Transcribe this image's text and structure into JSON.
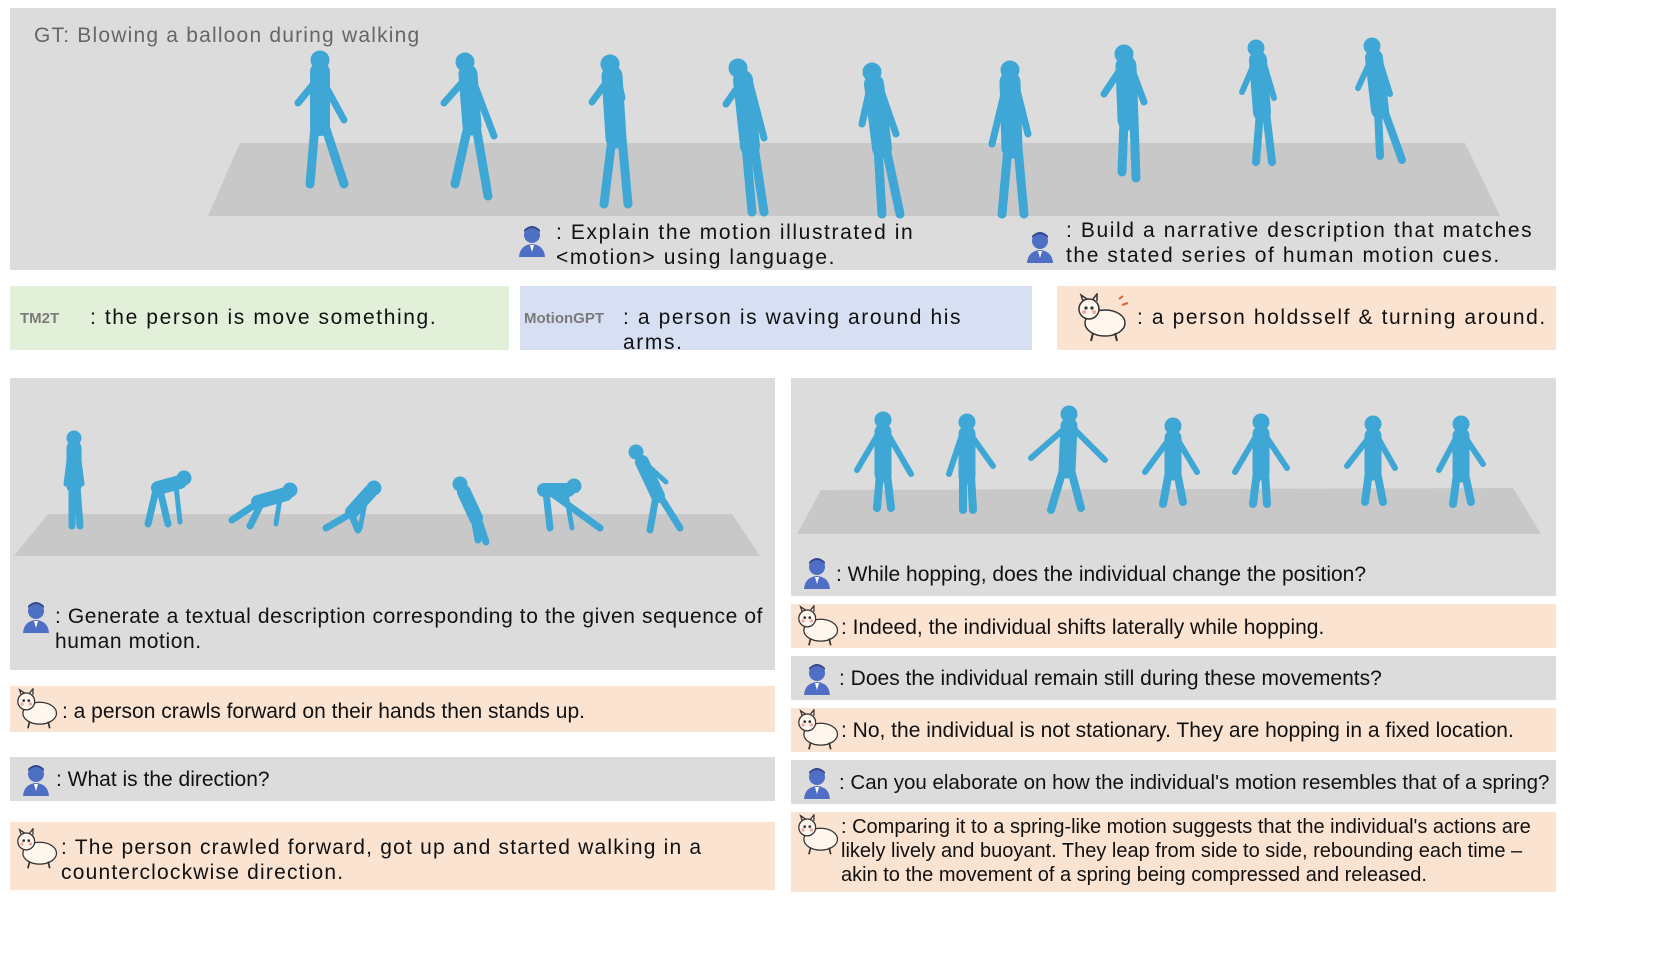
{
  "colors": {
    "figure": "#3fa7d6",
    "panel_gray": "#dcdcdc",
    "answer_peach": "#fbe3d2",
    "tm2t_green": "#e3f0d9",
    "motiongpt_blue": "#d7e0f3",
    "user_icon": "#4f6fc4"
  },
  "icons": {
    "user": "user-icon",
    "model": "llama-mascot-icon"
  },
  "top": {
    "gt_label": "GT: Blowing a balloon during walking",
    "prompt1": ": Explain the motion illustrated in <motion> using language.",
    "prompt2": ": Build a narrative description that matches the stated series of human motion cues.",
    "tm2t": {
      "label": "TM2T",
      "text": ": the person is move something."
    },
    "motiongpt": {
      "label": "MotionGPT",
      "text": ": a person is waving around his arms."
    },
    "ours": {
      "text": ": a person holdsself & turning around."
    }
  },
  "left": {
    "q1": ": Generate a textual description corresponding to the given sequence of human motion.",
    "a1": ": a person crawls forward on their hands then stands up.",
    "q2": ": What is the direction?",
    "a2": ": The person crawled forward, got up and started walking in a counterclockwise direction."
  },
  "right": {
    "q1": ": While hopping, does the individual change the position?",
    "a1": ": Indeed, the individual shifts laterally while hopping.",
    "q2": ": Does the individual remain still during these movements?",
    "a2": ": No, the individual is not stationary. They are hopping in a fixed location.",
    "q3": ": Can you elaborate on how the individual's motion resembles that of a spring?",
    "a3": ": Comparing it to a spring-like motion suggests that the individual's actions are likely lively and buoyant. They leap from side to side, rebounding each time – akin to the movement of a spring being compressed and released."
  }
}
